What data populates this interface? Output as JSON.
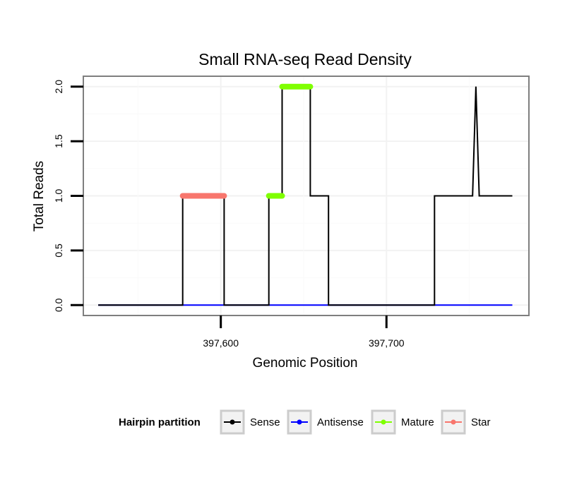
{
  "chart_data": {
    "type": "line",
    "title": "Small RNA-seq Read Density",
    "xlabel": "Genomic Position",
    "ylabel": "Total Reads",
    "xlim": [
      397517,
      397786
    ],
    "ylim": [
      -0.095,
      2.095
    ],
    "x_ticks": [
      397600,
      397700
    ],
    "x_tick_labels": [
      "397,600",
      "397,700"
    ],
    "y_ticks": [
      0,
      0.5,
      1,
      1.5,
      2
    ],
    "y_tick_labels": [
      "0.0",
      "0.5",
      "1.0",
      "1.5",
      "2.0"
    ],
    "grid": true,
    "legend": {
      "title": "Hairpin partition",
      "placement": "bottom",
      "entries": [
        {
          "name": "Sense",
          "color": "#000000"
        },
        {
          "name": "Antisense",
          "color": "#0000ff"
        },
        {
          "name": "Mature",
          "color": "#7fff00"
        },
        {
          "name": "Star",
          "color": "#f8766d"
        }
      ]
    },
    "series": [
      {
        "name": "Antisense",
        "color": "#0000ff",
        "width": 2,
        "x": [
          397526,
          397776
        ],
        "y": [
          0,
          0
        ]
      },
      {
        "name": "Sense",
        "color": "#000000",
        "width": 2,
        "x": [
          397526,
          397577,
          397577,
          397602,
          397602,
          397629,
          397629,
          397637,
          397637,
          397654,
          397654,
          397665,
          397665,
          397729,
          397729,
          397752,
          397754,
          397756,
          397776
        ],
        "y": [
          0,
          0,
          1,
          1,
          0,
          0,
          1,
          1,
          2,
          2,
          1,
          1,
          0,
          0,
          1,
          1,
          2,
          1,
          1
        ]
      },
      {
        "name": "Star",
        "color": "#f8766d",
        "width": 8,
        "x": [
          397577,
          397602
        ],
        "y": [
          1,
          1
        ]
      },
      {
        "name": "Mature",
        "color": "#7fff00",
        "width": 8,
        "segments": [
          {
            "x": [
              397629,
              397637
            ],
            "y": [
              1,
              1
            ]
          },
          {
            "x": [
              397637,
              397654
            ],
            "y": [
              2,
              2
            ]
          }
        ]
      }
    ]
  }
}
